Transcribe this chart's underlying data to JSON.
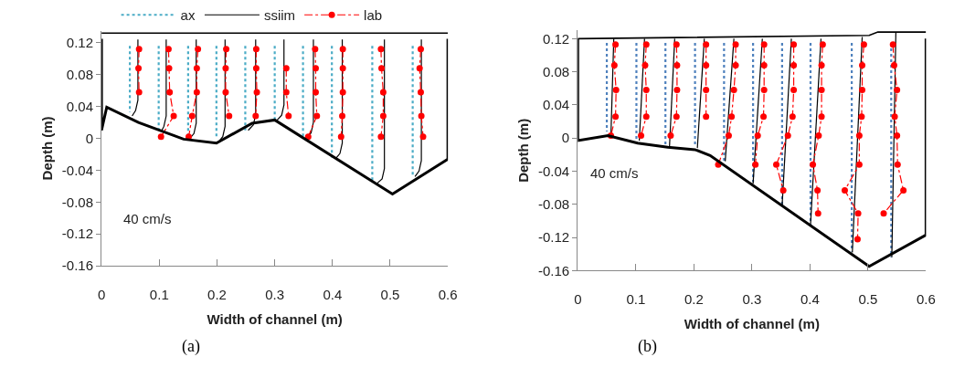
{
  "chart_data": [
    {
      "type": "line",
      "xlabel": "Width of channel (m)",
      "ylabel": "Depth (m)",
      "xlim": [
        0,
        0.6
      ],
      "xticks": [
        0,
        0.1,
        0.2,
        0.3,
        0.4,
        0.5,
        0.6
      ],
      "ylim": [
        -0.16,
        0.135
      ],
      "yticks": [
        -0.16,
        -0.12,
        -0.08,
        -0.04,
        0,
        0.04,
        0.08,
        0.12
      ],
      "legend": "top",
      "annotations": [
        "40 cm/s",
        "(a)"
      ],
      "series": [
        {
          "name": "ax",
          "color": "#4bacc6",
          "line_style": "dotted",
          "x": [
            0.049,
            0.049,
            null,
            0.099,
            0.099,
            null,
            0.15,
            0.15,
            null,
            0.199,
            0.199,
            null,
            0.249,
            0.249,
            null,
            0.3,
            0.3,
            null,
            0.349,
            0.349,
            null,
            0.399,
            0.399,
            null,
            0.469,
            0.469,
            null,
            0.539,
            0.539
          ],
          "values": [
            0.116,
            0.033,
            null,
            0.116,
            0.01,
            null,
            0.116,
            0.001,
            null,
            0.116,
            0.0,
            null,
            0.116,
            0.01,
            null,
            0.116,
            0.022,
            null,
            0.116,
            0.001,
            null,
            0.116,
            -0.024,
            null,
            0.116,
            -0.056,
            null,
            0.116,
            -0.048
          ]
        },
        {
          "name": "ssiim",
          "color": "#000000",
          "line_style": "solid",
          "x": [
            0.063,
            0.063,
            0.059,
            0.053,
            null,
            0.112,
            0.112,
            0.108,
            0.103,
            null,
            0.164,
            0.164,
            0.16,
            0.152,
            null,
            0.214,
            0.214,
            0.21,
            0.202,
            null,
            0.267,
            0.267,
            0.263,
            0.254,
            null,
            0.316,
            0.316,
            0.312,
            0.303,
            null,
            0.367,
            0.367,
            0.363,
            0.355,
            null,
            0.417,
            0.417,
            0.413,
            0.405,
            null,
            0.49,
            0.49,
            0.486,
            0.475,
            null,
            0.554,
            0.554,
            0.55,
            0.543
          ],
          "values": [
            0.124,
            0.048,
            0.035,
            0.028,
            null,
            0.124,
            0.028,
            0.015,
            0.008,
            null,
            0.124,
            0.019,
            0.006,
            -0.001,
            null,
            0.124,
            0.015,
            0.002,
            -0.005,
            null,
            0.124,
            0.03,
            0.017,
            0.01,
            null,
            0.124,
            0.042,
            0.029,
            0.022,
            null,
            0.124,
            0.02,
            0.007,
            0.0,
            null,
            0.124,
            -0.006,
            -0.019,
            -0.026,
            null,
            0.124,
            -0.038,
            -0.051,
            -0.058,
            null,
            0.124,
            -0.028,
            -0.041,
            -0.048
          ]
        },
        {
          "name": "lab",
          "color": "#ff0000",
          "line_style": "dashed",
          "marker": "circle",
          "x": [
            0.065,
            0.064,
            0.065,
            null,
            0.116,
            0.117,
            0.118,
            0.125,
            0.103,
            null,
            0.167,
            0.165,
            0.165,
            0.157,
            0.151,
            null,
            0.216,
            0.215,
            0.215,
            0.221,
            null,
            0.268,
            0.268,
            0.269,
            0.267,
            null,
            0.32,
            0.32,
            0.324,
            null,
            0.37,
            0.371,
            0.371,
            0.373,
            0.358,
            null,
            0.418,
            0.418,
            0.418,
            0.417,
            0.415,
            null,
            0.484,
            0.485,
            0.488,
            0.488,
            0.484,
            null,
            0.553,
            0.551,
            0.553,
            0.554,
            0.557
          ],
          "values": [
            0.112,
            0.088,
            0.058,
            null,
            0.112,
            0.088,
            0.058,
            0.028,
            0.002,
            null,
            0.112,
            0.088,
            0.058,
            0.028,
            0.002,
            null,
            0.112,
            0.088,
            0.058,
            0.028,
            null,
            0.112,
            0.088,
            0.058,
            0.028,
            null,
            0.088,
            0.058,
            0.028,
            null,
            0.112,
            0.088,
            0.058,
            0.028,
            0.002,
            null,
            0.112,
            0.088,
            0.058,
            0.028,
            0.002,
            null,
            0.112,
            0.088,
            0.058,
            0.028,
            0.002,
            null,
            0.112,
            0.088,
            0.058,
            0.028,
            0.002
          ]
        },
        {
          "color": "#000000",
          "line_style": "solid",
          "x": [
            0,
            0,
            0.009,
            0.064,
            0.142,
            0.199,
            0.261,
            0.3,
            0.504,
            0.6,
            0.6
          ],
          "values": [
            0.125,
            0.01,
            0.039,
            0.02,
            -0.001,
            -0.006,
            0.019,
            0.023,
            -0.07,
            -0.026,
            0.125
          ]
        },
        {
          "color": "#000000",
          "line_style": "solid",
          "x": [
            0,
            0.6
          ],
          "values": [
            0.132,
            0.132
          ]
        }
      ]
    },
    {
      "type": "line",
      "xlabel": "Width of channel (m)",
      "ylabel": "Depth (m)",
      "xlim": [
        0,
        0.6
      ],
      "xticks": [
        0,
        0.1,
        0.2,
        0.3,
        0.4,
        0.5,
        0.6
      ],
      "ylim": [
        -0.16,
        0.13
      ],
      "yticks": [
        -0.16,
        -0.12,
        -0.08,
        -0.04,
        0,
        0.04,
        0.08,
        0.12
      ],
      "annotations": [
        "40 cm/s",
        "(b)"
      ],
      "series": [
        {
          "color": "#4f81bd",
          "line_style": "dotted",
          "x": [
            0.05,
            0.05,
            null,
            0.101,
            0.101,
            null,
            0.151,
            0.151,
            null,
            0.202,
            0.202,
            null,
            0.252,
            0.252,
            null,
            0.302,
            0.302,
            null,
            0.352,
            0.352,
            null,
            0.401,
            0.401,
            null,
            0.472,
            0.472,
            null,
            0.54,
            0.54
          ],
          "values": [
            0.115,
            0.008,
            null,
            0.115,
            -0.003,
            null,
            0.115,
            -0.01,
            null,
            0.115,
            -0.01,
            null,
            0.115,
            -0.028,
            null,
            0.115,
            -0.053,
            null,
            0.115,
            -0.081,
            null,
            0.115,
            -0.106,
            null,
            0.115,
            -0.137,
            null,
            0.115,
            -0.144
          ]
        },
        {
          "color": "#000000",
          "line_style": "solid",
          "x": [
            0.062,
            0.057,
            null,
            0.115,
            0.106,
            null,
            0.167,
            0.158,
            null,
            0.218,
            0.206,
            null,
            0.269,
            0.254,
            null,
            0.318,
            0.302,
            null,
            0.368,
            0.352,
            null,
            0.419,
            0.401,
            null,
            0.49,
            0.473,
            null,
            0.548,
            0.541
          ],
          "values": [
            0.12,
            0.001,
            null,
            0.12,
            -0.003,
            null,
            0.12,
            -0.01,
            null,
            0.12,
            -0.012,
            null,
            0.12,
            -0.028,
            null,
            0.12,
            -0.055,
            null,
            0.12,
            -0.082,
            null,
            0.12,
            -0.104,
            null,
            0.122,
            -0.138,
            null,
            0.127,
            -0.144
          ]
        },
        {
          "color": "#ff0000",
          "line_style": "dashed",
          "marker": "circle",
          "x": [
            0.065,
            0.063,
            0.066,
            0.065,
            0.057,
            null,
            0.118,
            0.116,
            0.118,
            0.118,
            0.109,
            null,
            0.17,
            0.171,
            0.171,
            0.17,
            0.16,
            null,
            0.221,
            0.221,
            0.221,
            0.221,
            null,
            0.272,
            0.272,
            0.269,
            0.265,
            0.26,
            0.242,
            null,
            0.321,
            0.321,
            0.321,
            0.32,
            0.31,
            0.306,
            null,
            0.372,
            0.372,
            0.372,
            0.37,
            0.362,
            0.342,
            0.354,
            null,
            0.422,
            0.42,
            0.42,
            0.42,
            0.415,
            0.405,
            0.413,
            0.414,
            null,
            0.493,
            0.49,
            0.49,
            0.489,
            0.485,
            0.485,
            0.46,
            0.483,
            0.482,
            null,
            0.543,
            0.545,
            0.55,
            0.546,
            0.55,
            0.551,
            0.561,
            0.527
          ],
          "values": [
            0.113,
            0.088,
            0.058,
            0.026,
            0.003,
            null,
            0.113,
            0.088,
            0.058,
            0.026,
            0.003,
            null,
            0.113,
            0.088,
            0.058,
            0.026,
            0.003,
            null,
            0.113,
            0.088,
            0.058,
            0.026,
            null,
            0.113,
            0.088,
            0.058,
            0.026,
            0.003,
            -0.032,
            null,
            0.113,
            0.088,
            0.058,
            0.026,
            0.003,
            -0.032,
            null,
            0.113,
            0.088,
            0.058,
            0.026,
            0.003,
            -0.032,
            -0.063,
            null,
            0.113,
            0.088,
            0.058,
            0.026,
            0.003,
            -0.032,
            -0.063,
            -0.091,
            null,
            0.113,
            0.088,
            0.058,
            0.026,
            0.003,
            -0.032,
            -0.063,
            -0.091,
            -0.122,
            null,
            0.113,
            0.088,
            0.058,
            0.026,
            0.003,
            -0.032,
            -0.063,
            -0.091
          ]
        },
        {
          "color": "#000000",
          "line_style": "solid",
          "x": [
            0,
            0,
            0.052,
            0.103,
            0.155,
            0.202,
            0.228,
            0.502,
            0.6,
            0.6
          ],
          "values": [
            0.12,
            -0.003,
            0.003,
            -0.006,
            -0.011,
            -0.014,
            -0.021,
            -0.155,
            -0.117,
            0.12
          ]
        },
        {
          "color": "#000000",
          "line_style": "solid",
          "x": [
            0,
            0.502,
            0.517,
            0.6
          ],
          "values": [
            0.12,
            0.124,
            0.128,
            0.128
          ]
        }
      ]
    }
  ]
}
